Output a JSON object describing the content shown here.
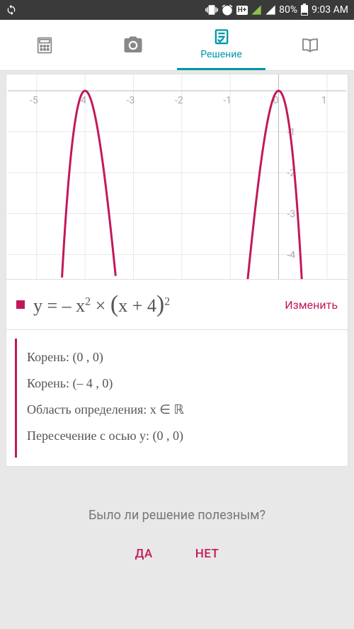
{
  "status": {
    "battery": "80%",
    "time": "9:03 AM",
    "sim1": "1",
    "sim2": "2",
    "network": "H+"
  },
  "tabs": {
    "active_label": "Решение"
  },
  "chart": {
    "type": "line",
    "xlim": [
      -5.6,
      1.4
    ],
    "ylim": [
      -4.6,
      0.4
    ],
    "xticks": [
      -5,
      -4,
      -3,
      -2,
      -1,
      0,
      1
    ],
    "yticks": [
      -1,
      -2,
      -3,
      -4
    ],
    "curve_color": "#c2185b",
    "grid_color": "#e8e8e8",
    "axis_color": "#bbbbbb",
    "tick_color": "#aaaaaa",
    "background_color": "#ffffff",
    "line_width": 3
  },
  "equation": {
    "formula_html": "y = – x<sup>2</sup> × <span style='font-size:34px'>(</span>x + 4<span style='font-size:34px'>)</span><sup>2</sup>",
    "edit_label": "Изменить",
    "marker_color": "#c2185b"
  },
  "properties": [
    "Корень: (0 , 0)",
    "Корень: (– 4 , 0)",
    "Область определения: x ∈ ℝ",
    "Пересечение с осью y: (0 , 0)"
  ],
  "feedback": {
    "question": "Было ли решение полезным?",
    "yes": "ДА",
    "no": "НЕТ"
  },
  "colors": {
    "accent_teal": "#0097a7",
    "accent_crimson": "#c2185b"
  }
}
